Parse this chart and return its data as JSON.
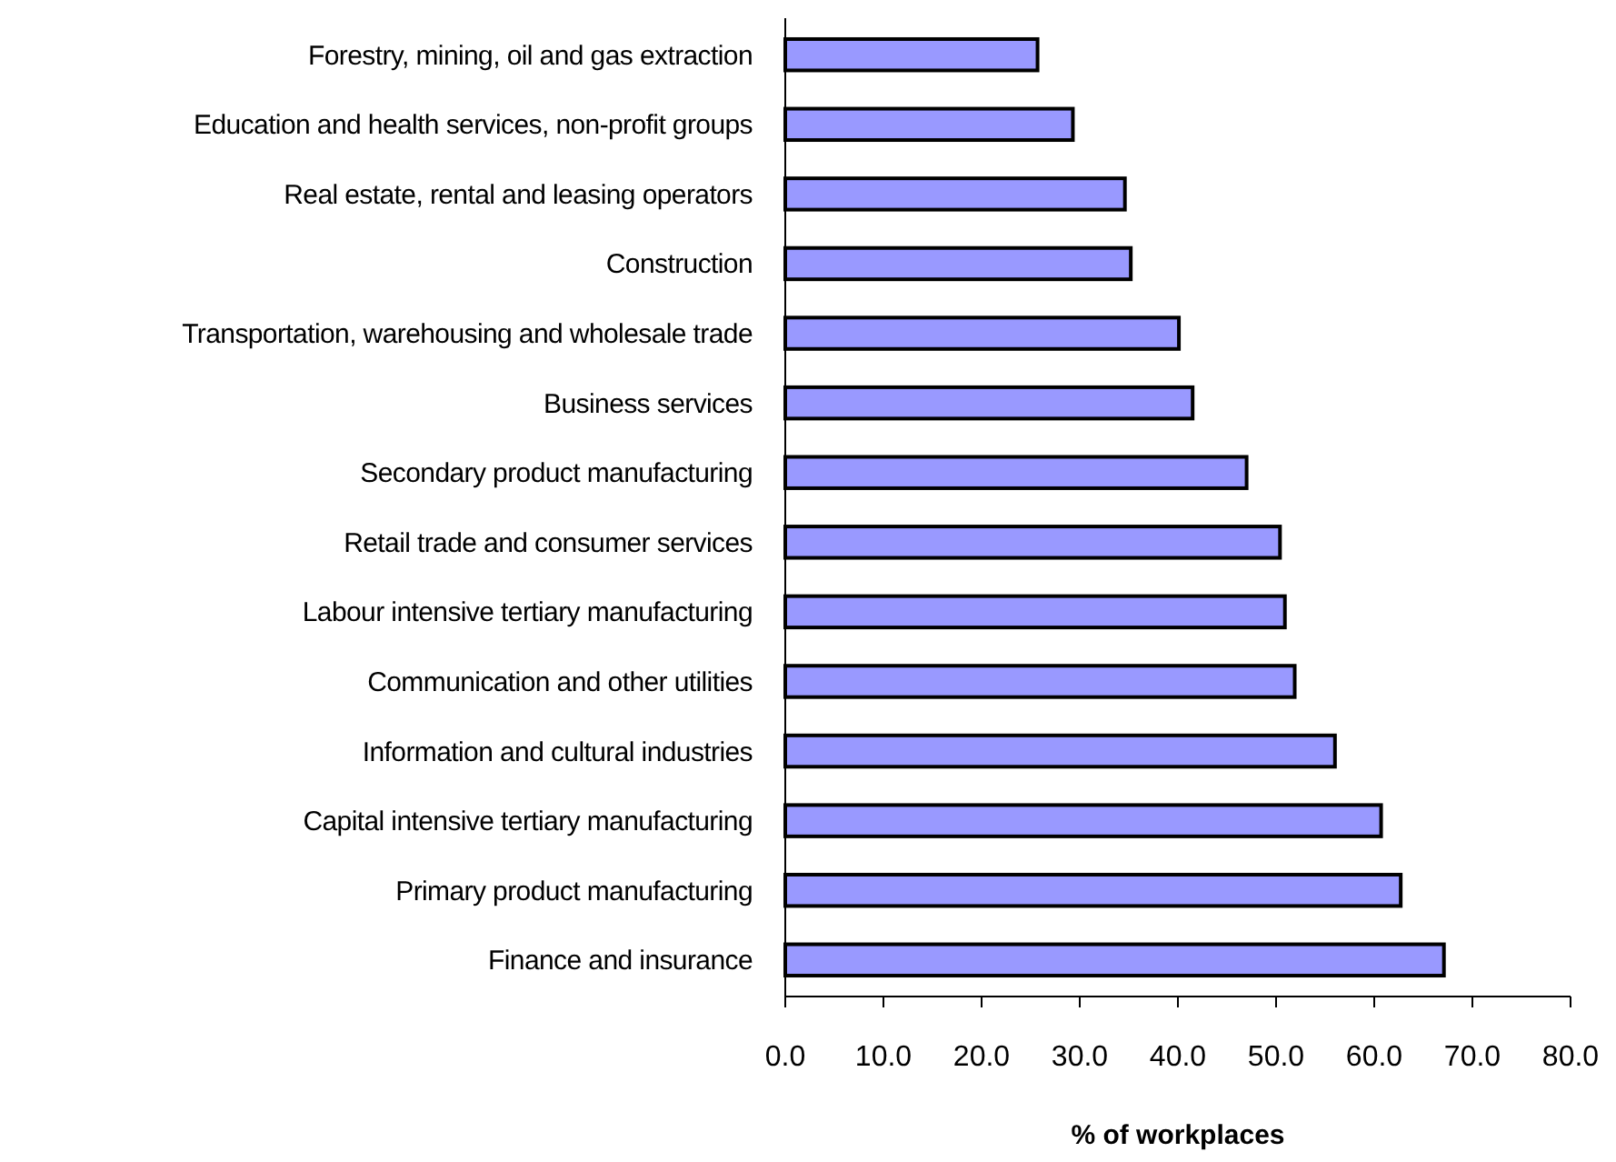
{
  "chart_data": {
    "type": "bar",
    "orientation": "horizontal",
    "xlabel": "% of workplaces",
    "categories": [
      "Forestry, mining, oil and gas extraction",
      "Education and health services, non-profit groups",
      "Real estate, rental and leasing operators",
      "Construction",
      "Transportation, warehousing and wholesale trade",
      "Business services",
      "Secondary product manufacturing",
      "Retail trade and consumer services",
      "Labour intensive tertiary manufacturing",
      "Communication and other utilities",
      "Information and cultural industries",
      "Capital intensive tertiary manufacturing",
      "Primary product manufacturing",
      "Finance and insurance"
    ],
    "values": [
      25.7,
      29.3,
      34.6,
      35.2,
      40.1,
      41.5,
      47.0,
      50.4,
      50.9,
      51.9,
      56.0,
      60.7,
      62.7,
      67.1
    ],
    "color": "#9999ff",
    "xlim": [
      0,
      80
    ],
    "xticks": [
      {
        "value": 0,
        "label": "0.0"
      },
      {
        "value": 10,
        "label": "10.0"
      },
      {
        "value": 20,
        "label": "20.0"
      },
      {
        "value": 30,
        "label": "30.0"
      },
      {
        "value": 40,
        "label": "40.0"
      },
      {
        "value": 50,
        "label": "50.0"
      },
      {
        "value": 60,
        "label": "60.0"
      },
      {
        "value": 70,
        "label": "70.0"
      },
      {
        "value": 80,
        "label": "80.0"
      }
    ]
  }
}
